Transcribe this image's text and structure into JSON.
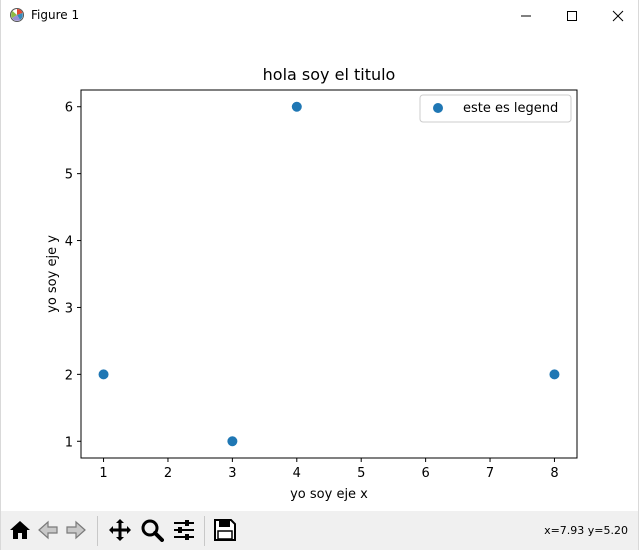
{
  "window": {
    "title": "Figure 1",
    "app_icon": "matplotlib-figure-icon",
    "controls": [
      "minimize-icon",
      "maximize-icon",
      "close-icon"
    ]
  },
  "chart_data": {
    "type": "scatter",
    "title": "hola soy el titulo",
    "xlabel": "yo soy eje x",
    "ylabel": "yo soy eje y",
    "series": [
      {
        "name": "este es legend",
        "x": [
          1,
          3,
          4,
          8
        ],
        "y": [
          2,
          1,
          6,
          2
        ],
        "color": "#1f77b4"
      }
    ],
    "xlim": [
      0.65,
      8.35
    ],
    "ylim": [
      0.75,
      6.25
    ],
    "xticks": [
      1,
      2,
      3,
      4,
      5,
      6,
      7,
      8
    ],
    "yticks": [
      1,
      2,
      3,
      4,
      5,
      6
    ],
    "grid": false,
    "legend": "top-right"
  },
  "toolbar": {
    "buttons": [
      "home-icon",
      "back-icon",
      "forward-icon",
      "pan-icon",
      "zoom-icon",
      "configure-subplots-icon",
      "save-icon"
    ],
    "coords": "x=7.93 y=5.20"
  }
}
